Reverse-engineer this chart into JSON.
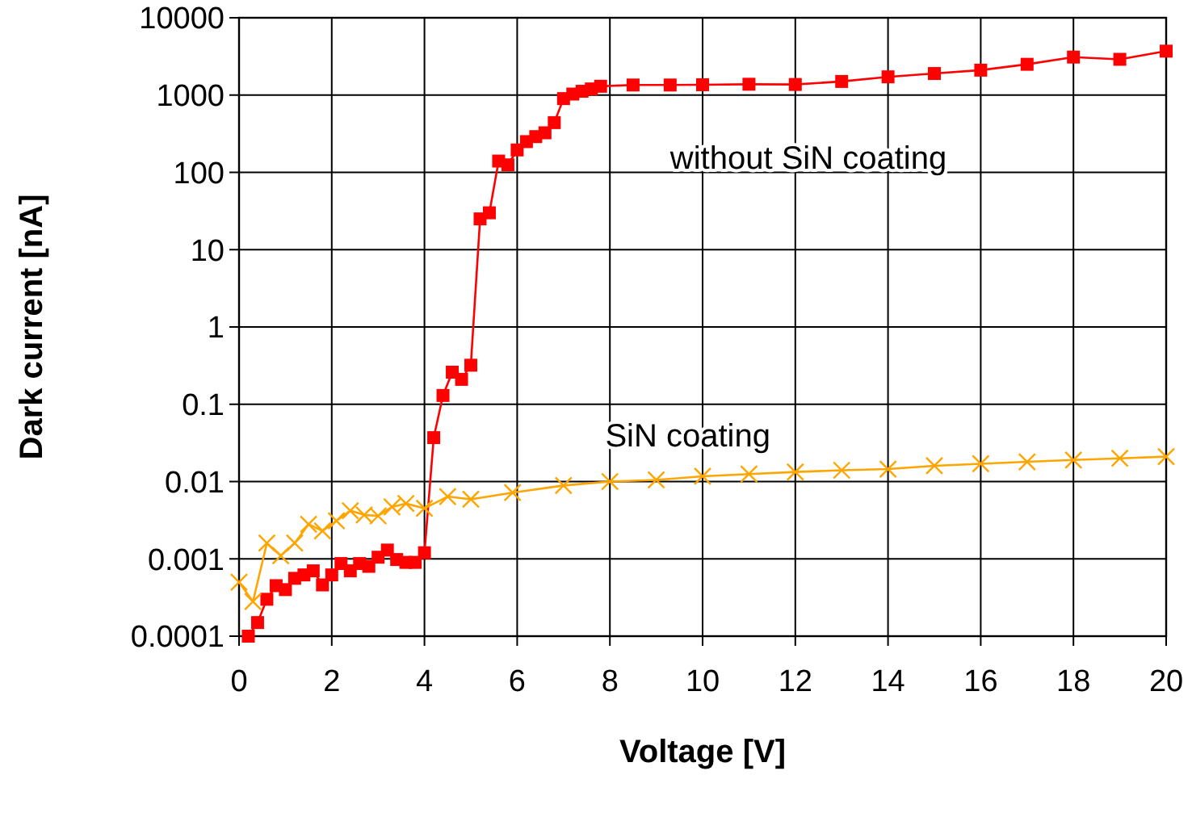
{
  "chart_data": {
    "type": "line",
    "xlabel": "Voltage  [V]",
    "ylabel": "Dark current  [nA]",
    "log": "y",
    "grid": true,
    "xlim": [
      0,
      20
    ],
    "xticks": [
      0,
      2,
      4,
      6,
      8,
      10,
      12,
      14,
      16,
      18,
      20
    ],
    "ylim": [
      0.0001,
      10000
    ],
    "yticks": [
      0.0001,
      0.001,
      0.01,
      0.1,
      1,
      10,
      100,
      1000,
      10000
    ],
    "series": [
      {
        "name": "without SiN coating",
        "color": "#ff0000",
        "marker": "square",
        "x": [
          0.2,
          0.4,
          0.6,
          0.8,
          1.0,
          1.2,
          1.4,
          1.6,
          1.8,
          2.0,
          2.2,
          2.4,
          2.6,
          2.8,
          3.0,
          3.2,
          3.4,
          3.6,
          3.8,
          4.0,
          4.2,
          4.4,
          4.6,
          4.8,
          5.0,
          5.2,
          5.4,
          5.6,
          5.8,
          6.0,
          6.2,
          6.4,
          6.6,
          6.8,
          7.0,
          7.2,
          7.4,
          7.6,
          7.8,
          8.5,
          9.3,
          10,
          11,
          12,
          13,
          14,
          15,
          16,
          17,
          18,
          19,
          20
        ],
        "values": [
          0.0001,
          0.00015,
          0.0003,
          0.00045,
          0.0004,
          0.00056,
          0.00062,
          0.0007,
          0.00046,
          0.00062,
          0.00087,
          0.0007,
          0.00087,
          0.0008,
          0.00105,
          0.0013,
          0.00098,
          0.0009,
          0.0009,
          0.0012,
          0.037,
          0.13,
          0.26,
          0.21,
          0.32,
          25,
          30,
          140,
          125,
          195,
          250,
          290,
          325,
          440,
          900,
          1030,
          1120,
          1200,
          1300,
          1350,
          1350,
          1360,
          1380,
          1370,
          1500,
          1720,
          1900,
          2100,
          2500,
          3100,
          2900,
          3700
        ]
      },
      {
        "name": "SiN coating",
        "color": "#ffa500",
        "marker": "cross",
        "x": [
          0,
          0.3,
          0.6,
          0.9,
          1.2,
          1.5,
          1.8,
          2.1,
          2.4,
          2.7,
          3.0,
          3.3,
          3.6,
          4.0,
          4.5,
          5.0,
          5.9,
          7.0,
          8.0,
          9.0,
          10,
          11,
          12,
          13,
          14,
          15,
          16,
          17,
          18,
          19,
          20
        ],
        "values": [
          0.0005,
          0.00028,
          0.0016,
          0.0011,
          0.0016,
          0.0028,
          0.0023,
          0.0031,
          0.0042,
          0.0037,
          0.0036,
          0.0047,
          0.0052,
          0.0045,
          0.0064,
          0.0059,
          0.0072,
          0.0089,
          0.01,
          0.0105,
          0.0117,
          0.0125,
          0.0133,
          0.014,
          0.0145,
          0.016,
          0.017,
          0.018,
          0.019,
          0.02,
          0.021
        ]
      }
    ]
  }
}
